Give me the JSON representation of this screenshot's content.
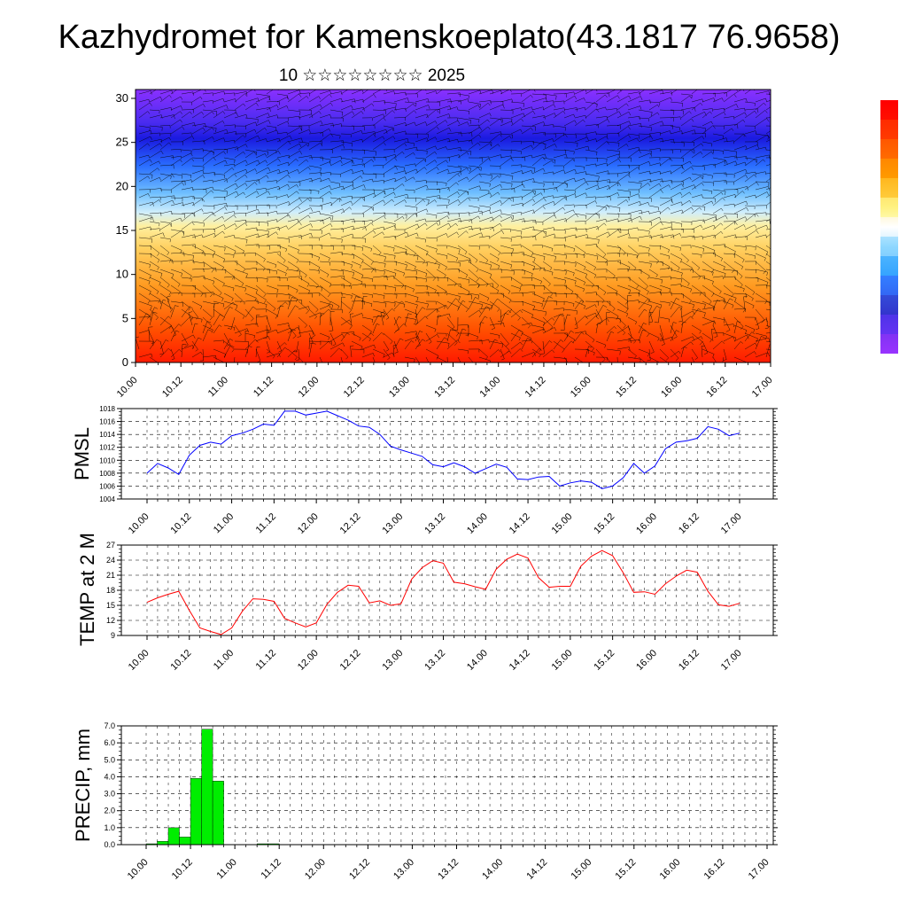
{
  "figure": {
    "title": "Kazhydromet for Kamenskoeplato(43.1817 76.9658)",
    "subtitle": "10 ☆☆☆☆☆☆☆☆ 2025"
  },
  "time_ticks": [
    "10.00",
    "10.12",
    "11.00",
    "11.12",
    "12.00",
    "12.12",
    "13.00",
    "13.12",
    "14.00",
    "14.12",
    "15.00",
    "15.12",
    "16.00",
    "16.12",
    "17.00"
  ],
  "colors": {
    "pmsl_line": "#0000ff",
    "temp_line": "#ff0000",
    "precip_bar": "#00ee00",
    "colorbar": [
      "#ff0000",
      "#ff3300",
      "#ff6600",
      "#ff9900",
      "#ffcc33",
      "#ffff99",
      "#ffffff",
      "#99ddff",
      "#33aaff",
      "#3366ff",
      "#3333cc",
      "#6633ff",
      "#9933ff"
    ]
  },
  "chart_data": [
    {
      "type": "heatmap",
      "title": "",
      "xlabel": "",
      "ylabel": "",
      "ylim": [
        0,
        30
      ],
      "yticks": [
        0,
        5,
        10,
        15,
        20,
        25,
        30
      ],
      "x": [
        "10.00",
        "10.12",
        "11.00",
        "11.12",
        "12.00",
        "12.12",
        "13.00",
        "13.12",
        "14.00",
        "14.12",
        "15.00",
        "15.12",
        "16.00",
        "16.12",
        "17.00"
      ],
      "colorbar": "vertical, right",
      "overlay": "wind barbs"
    },
    {
      "type": "line",
      "ylabel": "PMSL",
      "ylim": [
        1004,
        1018
      ],
      "yticks": [
        1004,
        1006,
        1008,
        1010,
        1012,
        1014,
        1016,
        1018
      ],
      "grid": true,
      "x": [
        "10.00",
        "10.03",
        "10.06",
        "10.09",
        "10.12",
        "10.15",
        "10.18",
        "10.21",
        "11.00",
        "11.03",
        "11.06",
        "11.09",
        "11.12",
        "11.15",
        "11.18",
        "11.21",
        "12.00",
        "12.03",
        "12.06",
        "12.09",
        "12.12",
        "12.15",
        "12.18",
        "12.21",
        "13.00",
        "13.03",
        "13.06",
        "13.09",
        "13.12",
        "13.15",
        "13.18",
        "13.21",
        "14.00",
        "14.03",
        "14.06",
        "14.09",
        "14.12",
        "14.15",
        "14.18",
        "14.21",
        "15.00",
        "15.03",
        "15.06",
        "15.09",
        "15.12",
        "15.15",
        "15.18",
        "15.21",
        "16.00",
        "16.03",
        "16.06",
        "16.09",
        "16.12",
        "16.15",
        "16.18",
        "16.21",
        "17.00"
      ],
      "series": [
        {
          "values": [
            1008.0,
            1009.5,
            1008.8,
            1007.8,
            1010.8,
            1012.3,
            1012.8,
            1012.5,
            1013.8,
            1014.2,
            1014.8,
            1015.6,
            1015.4,
            1017.6,
            1017.6,
            1017.0,
            1017.3,
            1017.6,
            1016.9,
            1016.2,
            1015.3,
            1015.1,
            1014.0,
            1012.2,
            1011.6,
            1011.1,
            1010.6,
            1009.3,
            1009.0,
            1009.6,
            1009.0,
            1008.0,
            1008.7,
            1009.4,
            1008.9,
            1007.1,
            1007.0,
            1007.4,
            1007.5,
            1006.0,
            1006.5,
            1006.8,
            1006.6,
            1005.6,
            1006.0,
            1007.3,
            1009.5,
            1008.0,
            1009.1,
            1011.8,
            1012.8,
            1013.0,
            1013.4,
            1015.2,
            1014.8,
            1013.8,
            1014.2
          ]
        }
      ]
    },
    {
      "type": "line",
      "ylabel": "TEMP at 2 M",
      "ylim": [
        9,
        27
      ],
      "yticks": [
        9,
        12,
        15,
        18,
        21,
        24,
        27
      ],
      "grid": true,
      "x": [
        "10.00",
        "10.03",
        "10.06",
        "10.09",
        "10.12",
        "10.15",
        "10.18",
        "10.21",
        "11.00",
        "11.03",
        "11.06",
        "11.09",
        "11.12",
        "11.15",
        "11.18",
        "11.21",
        "12.00",
        "12.03",
        "12.06",
        "12.09",
        "12.12",
        "12.15",
        "12.18",
        "12.21",
        "13.00",
        "13.03",
        "13.06",
        "13.09",
        "13.12",
        "13.15",
        "13.18",
        "13.21",
        "14.00",
        "14.03",
        "14.06",
        "14.09",
        "14.12",
        "14.15",
        "14.18",
        "14.21",
        "15.00",
        "15.03",
        "15.06",
        "15.09",
        "15.12",
        "15.15",
        "15.18",
        "15.21",
        "16.00",
        "16.03",
        "16.06",
        "16.09",
        "16.12",
        "16.15",
        "16.18",
        "16.21",
        "17.00"
      ],
      "series": [
        {
          "values": [
            15.6,
            16.5,
            17.2,
            17.8,
            14.0,
            10.5,
            9.8,
            9.2,
            10.5,
            13.8,
            16.3,
            16.2,
            15.8,
            12.4,
            11.5,
            10.7,
            11.5,
            15.2,
            17.6,
            19.0,
            18.8,
            15.5,
            15.9,
            15.0,
            15.3,
            20.2,
            22.5,
            23.9,
            23.4,
            19.6,
            19.3,
            18.7,
            18.2,
            22.2,
            24.2,
            25.2,
            24.4,
            20.5,
            18.6,
            18.8,
            18.8,
            22.8,
            24.8,
            25.9,
            24.9,
            21.5,
            17.6,
            17.7,
            17.2,
            19.3,
            20.8,
            22.0,
            21.6,
            17.8,
            15.1,
            14.8,
            15.4
          ]
        }
      ]
    },
    {
      "type": "bar",
      "ylabel": "PRECIP, mm",
      "ylim": [
        0,
        7
      ],
      "yticks": [
        "0.0",
        "1.0",
        "2.0",
        "3.0",
        "4.0",
        "5.0",
        "6.0",
        "7.0"
      ],
      "grid": true,
      "x": [
        "10.00",
        "10.03",
        "10.06",
        "10.09",
        "10.12",
        "10.15",
        "10.18",
        "10.21",
        "11.00",
        "11.03",
        "11.06",
        "11.09",
        "11.12"
      ],
      "values": [
        0.05,
        0.2,
        1.0,
        0.45,
        3.9,
        6.8,
        3.75,
        0.0,
        0.0,
        0.0,
        0.05,
        0.05,
        0.0
      ]
    }
  ]
}
